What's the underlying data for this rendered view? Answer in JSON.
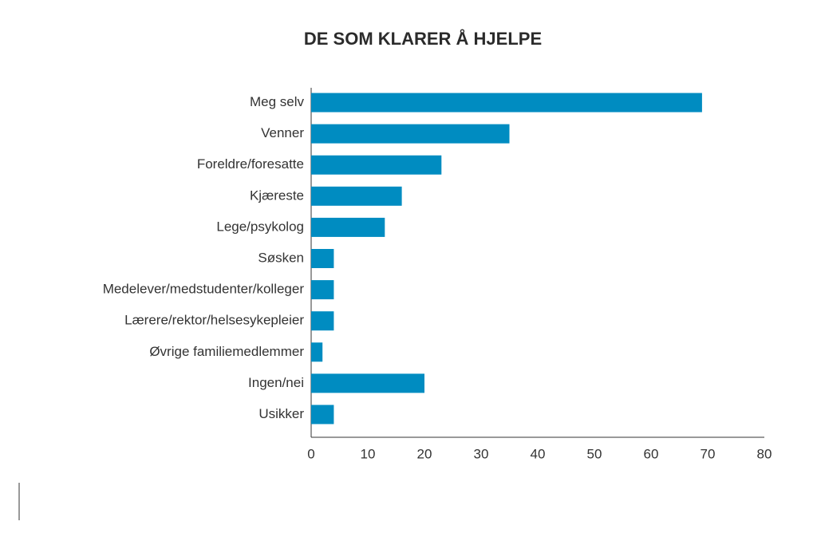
{
  "chart_data": {
    "type": "bar",
    "orientation": "horizontal",
    "title": "DE SOM KLARER Å HJELPE",
    "categories": [
      "Meg selv",
      "Venner",
      "Foreldre/foresatte",
      "Kjæreste",
      "Lege/psykolog",
      "Søsken",
      "Medelever/medstudenter/kolleger",
      "Lærere/rektor/helsesykepleier",
      "Øvrige familiemedlemmer",
      "Ingen/nei",
      "Usikker"
    ],
    "values": [
      69,
      35,
      23,
      16,
      13,
      4,
      4,
      4,
      2,
      20,
      4
    ],
    "color": "#008cc1",
    "xlim": [
      0,
      80
    ],
    "xticks": [
      0,
      10,
      20,
      30,
      40,
      50,
      60,
      70,
      80
    ],
    "grid": false
  }
}
